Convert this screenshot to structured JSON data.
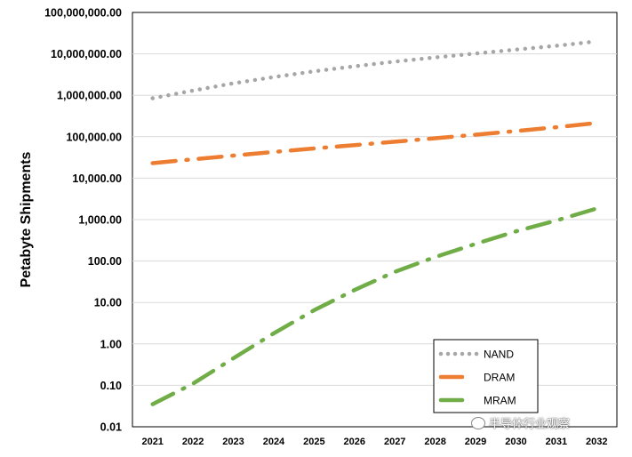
{
  "chart_data": {
    "type": "line",
    "title": "",
    "xlabel": "",
    "ylabel": "Petabyte Shipments",
    "yscale": "log",
    "ylim": [
      0.01,
      100000000
    ],
    "yticks": [
      "100,000,000.00",
      "10,000,000.00",
      "1,000,000.00",
      "100,000.00",
      "10,000.00",
      "1,000.00",
      "100.00",
      "10.00",
      "1.00",
      "0.10",
      "0.01"
    ],
    "x": [
      "2021",
      "2022",
      "2023",
      "2024",
      "2025",
      "2026",
      "2027",
      "2028",
      "2029",
      "2030",
      "2031",
      "2032"
    ],
    "grid": true,
    "legend_position": "bottom-right",
    "series": [
      {
        "name": "NAND",
        "color": "#a6a6a6",
        "style": "dotted",
        "values": [
          850000,
          1300000,
          1950000,
          2750000,
          3800000,
          5000000,
          6500000,
          8200000,
          10200000,
          12700000,
          15700000,
          20000000
        ]
      },
      {
        "name": "DRAM",
        "color": "#ed7d31",
        "style": "dash-dot",
        "values": [
          23000,
          28500,
          35000,
          43000,
          52000,
          63000,
          76000,
          92000,
          112000,
          137000,
          170000,
          215000
        ]
      },
      {
        "name": "MRAM",
        "color": "#70ad47",
        "style": "dash-dot",
        "values": [
          0.035,
          0.11,
          0.45,
          1.8,
          6.5,
          20,
          55,
          125,
          260,
          520,
          950,
          1850
        ]
      }
    ]
  },
  "watermark": {
    "text": "半导体行业观察",
    "icon": "wechat-icon"
  }
}
